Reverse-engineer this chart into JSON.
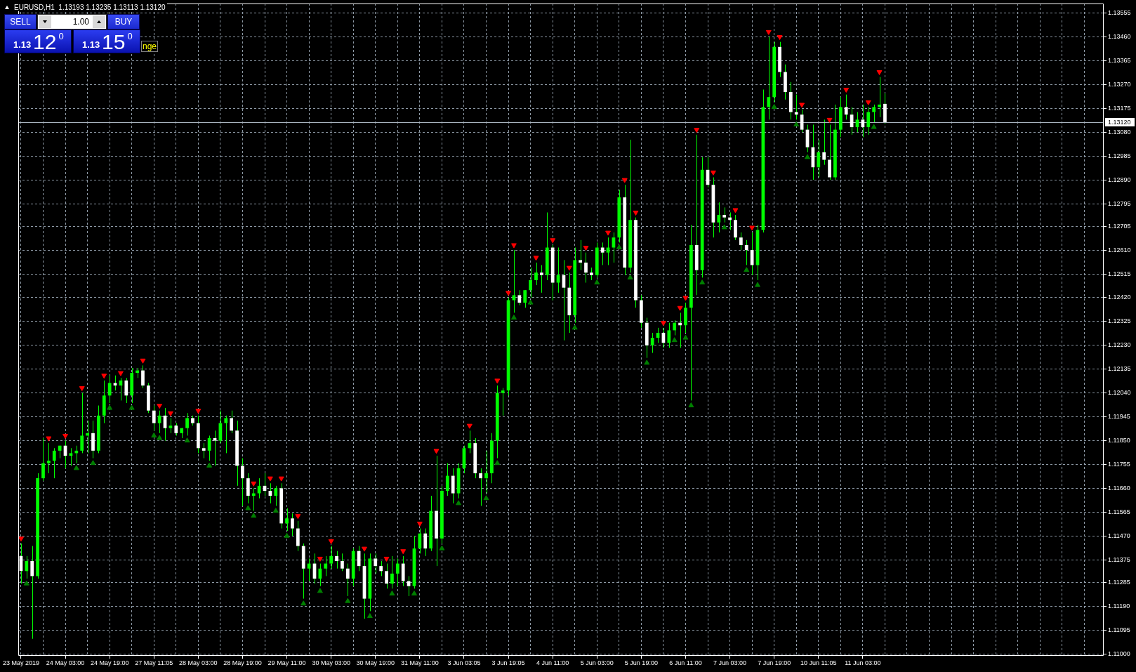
{
  "chart_data": {
    "type": "candlestick",
    "title": "EURUSD,H1  1.13193 1.13235 1.13113 1.13120",
    "categories": [
      "23 May 2019",
      null,
      null,
      null,
      null,
      null,
      null,
      null,
      "24 May 03:00",
      null,
      null,
      null,
      null,
      null,
      null,
      null,
      "24 May 19:00",
      null,
      null,
      null,
      null,
      null,
      null,
      null,
      "27 May 11:05",
      null,
      null,
      null,
      null,
      null,
      null,
      null,
      "28 May 03:00",
      null,
      null,
      null,
      null,
      null,
      null,
      null,
      "28 May 19:00",
      null,
      null,
      null,
      null,
      null,
      null,
      null,
      "29 May 11:00",
      null,
      null,
      null,
      null,
      null,
      null,
      null,
      "30 May 03:00",
      null,
      null,
      null,
      null,
      null,
      null,
      null,
      "30 May 19:00",
      null,
      null,
      null,
      null,
      null,
      null,
      null,
      "31 May 11:00",
      null,
      null,
      null,
      null,
      null,
      null,
      null,
      "3 Jun 03:05",
      null,
      null,
      null,
      null,
      null,
      null,
      null,
      "3 Jun 19:05",
      null,
      null,
      null,
      null,
      null,
      null,
      null,
      "4 Jun 11:00",
      null,
      null,
      null,
      null,
      null,
      null,
      null,
      "5 Jun 03:00",
      null,
      null,
      null,
      null,
      null,
      null,
      null,
      "5 Jun 19:00",
      null,
      null,
      null,
      null,
      null,
      null,
      null,
      "6 Jun 11:00",
      null,
      null,
      null,
      null,
      null,
      null,
      null,
      "7 Jun 03:00",
      null,
      null,
      null,
      null,
      null,
      null,
      null,
      "7 Jun 19:00",
      null,
      null,
      null,
      null,
      null,
      null,
      null,
      "10 Jun 11:05",
      null,
      null,
      null,
      null,
      null,
      null,
      null,
      "11 Jun 03:00",
      null,
      null,
      null,
      null,
      null,
      null,
      null,
      null,
      null,
      null,
      null,
      null,
      null,
      null,
      null,
      null,
      null,
      null,
      null,
      null,
      null,
      null,
      null,
      null,
      null,
      null,
      null,
      null,
      null,
      null,
      null,
      null,
      null,
      null,
      null,
      null,
      null,
      null,
      null,
      null,
      null,
      null,
      null
    ],
    "series": [
      {
        "color": "#00ff00",
        "colors": [
          "#ffffff",
          "#00ff00",
          "#ffffff",
          "#00ff00",
          "#00ff00",
          "#00ff00",
          "#00ff00",
          "#00ff00",
          "#ffffff",
          "#00ff00",
          "#00ff00",
          "#00ff00",
          "#00ff00",
          "#ffffff",
          "#00ff00",
          "#00ff00",
          "#00ff00",
          "#ffffff",
          "#00ff00",
          "#ffffff",
          "#00ff00",
          "#00ff00",
          "#ffffff",
          "#ffffff",
          "#ffffff",
          "#00ff00",
          "#ffffff",
          "#00ff00",
          "#ffffff",
          "#00ff00",
          "#00ff00",
          "#ffffff",
          "#ffffff",
          "#ffffff",
          "#00ff00",
          "#ffffff",
          "#00ff00",
          "#00ff00",
          "#ffffff",
          "#ffffff",
          "#ffffff",
          "#ffffff",
          "#00ff00",
          "#00ff00",
          "#ffffff",
          "#ffffff",
          "#00ff00",
          "#ffffff",
          "#00ff00",
          "#ffffff",
          "#ffffff",
          "#ffffff",
          "#00ff00",
          "#ffffff",
          "#00ff00",
          "#00ff00",
          "#00ff00",
          "#ffffff",
          "#ffffff",
          "#ffffff",
          "#00ff00",
          "#ffffff",
          "#ffffff",
          "#00ff00",
          "#ffffff",
          "#ffffff",
          "#ffffff",
          "#00ff00",
          "#00ff00",
          "#ffffff",
          "#ffffff",
          "#00ff00",
          "#00ff00",
          "#ffffff",
          "#00ff00",
          "#ffffff",
          "#00ff00",
          "#00ff00",
          "#ffffff",
          "#00ff00",
          "#00ff00",
          "#00ff00",
          "#ffffff",
          "#ffffff",
          "#00ff00",
          "#00ff00",
          "#00ff00",
          "#00ff00",
          "#00ff00",
          "#00ff00",
          "#ffffff",
          "#00ff00",
          "#00ff00",
          "#00ff00",
          "#ffffff",
          "#00ff00",
          "#ffffff",
          "#00ff00",
          "#ffffff",
          "#ffffff",
          "#00ff00",
          "#ffffff",
          "#ffffff",
          "#ffffff",
          "#00ff00",
          "#ffffff",
          "#00ff00",
          "#00ff00",
          "#00ff00",
          "#ffffff",
          "#00ff00",
          "#ffffff",
          "#ffffff",
          "#ffffff",
          "#00ff00",
          "#00ff00",
          "#ffffff",
          "#00ff00",
          "#00ff00",
          "#ffffff",
          "#00ff00",
          "#00ff00",
          "#ffffff",
          "#00ff00",
          "#ffffff",
          "#ffffff",
          "#00ff00",
          "#ffffff",
          "#ffffff",
          "#ffffff",
          "#ffffff",
          "#ffffff",
          "#ffffff",
          "#00ff00",
          "#00ff00",
          "#00ff00",
          "#00ff00",
          "#ffffff",
          "#ffffff",
          "#ffffff",
          "#ffffff",
          "#ffffff",
          "#ffffff",
          "#ffffff",
          "#00ff00",
          "#ffffff",
          "#ffffff",
          "#00ff00",
          "#00ff00",
          "#ffffff",
          "#ffffff",
          "#00ff00",
          "#ffffff",
          "#00ff00",
          "#00ff00",
          "#00ff00",
          "#ffffff",
          null,
          null,
          null,
          null,
          null,
          null,
          null,
          null,
          null,
          null,
          null,
          null,
          null,
          null,
          null,
          null,
          null,
          null,
          null,
          null,
          null,
          null,
          null,
          null,
          null,
          null,
          null,
          null,
          null,
          null,
          null,
          null,
          null,
          null,
          null,
          null,
          null,
          null,
          null
        ],
        "ohlc": [
          [
            1.1139,
            1.1144,
            1.1128,
            1.1133
          ],
          [
            1.1133,
            1.1139,
            1.113,
            1.1137
          ],
          [
            1.1137,
            1.1143,
            1.1106,
            1.1131
          ],
          [
            1.1131,
            1.1172,
            1.113,
            1.117
          ],
          [
            1.117,
            1.1186,
            1.1169,
            1.1176
          ],
          [
            1.1176,
            1.1184,
            1.1172,
            1.1177
          ],
          [
            1.1177,
            1.1182,
            1.117,
            1.1181
          ],
          [
            1.1181,
            1.1183,
            1.1178,
            1.1183
          ],
          [
            1.1183,
            1.1185,
            1.1174,
            1.1179
          ],
          [
            1.1179,
            1.1182,
            1.1175,
            1.118
          ],
          [
            1.118,
            1.1183,
            1.1176,
            1.1181
          ],
          [
            1.1181,
            1.1204,
            1.118,
            1.1187
          ],
          [
            1.1187,
            1.1193,
            1.118,
            1.1188
          ],
          [
            1.1188,
            1.1193,
            1.1178,
            1.1181
          ],
          [
            1.1181,
            1.1199,
            1.118,
            1.1195
          ],
          [
            1.1195,
            1.1209,
            1.1192,
            1.1203
          ],
          [
            1.1203,
            1.1211,
            1.12,
            1.1208
          ],
          [
            1.1208,
            1.1211,
            1.1205,
            1.1207
          ],
          [
            1.1207,
            1.121,
            1.1201,
            1.1209
          ],
          [
            1.1209,
            1.121,
            1.12,
            1.1203
          ],
          [
            1.1203,
            1.1214,
            1.12,
            1.1212
          ],
          [
            1.1212,
            1.1214,
            1.121,
            1.1213
          ],
          [
            1.1213,
            1.1215,
            1.1206,
            1.1207
          ],
          [
            1.1207,
            1.1208,
            1.1196,
            1.1197
          ],
          [
            1.1197,
            1.1199,
            1.1189,
            1.1192
          ],
          [
            1.1192,
            1.1197,
            1.1188,
            1.1195
          ],
          [
            1.1195,
            1.1198,
            1.1185,
            1.119
          ],
          [
            1.119,
            1.1194,
            1.1188,
            1.1191
          ],
          [
            1.1191,
            1.1192,
            1.1187,
            1.1188
          ],
          [
            1.1188,
            1.119,
            1.1186,
            1.119
          ],
          [
            1.119,
            1.1196,
            1.1187,
            1.1194
          ],
          [
            1.1194,
            1.1195,
            1.1191,
            1.1192
          ],
          [
            1.1192,
            1.1195,
            1.118,
            1.1182
          ],
          [
            1.1182,
            1.1184,
            1.1178,
            1.1181
          ],
          [
            1.1181,
            1.1187,
            1.1177,
            1.1186
          ],
          [
            1.1186,
            1.1189,
            1.1175,
            1.1185
          ],
          [
            1.1185,
            1.1197,
            1.1184,
            1.1192
          ],
          [
            1.1192,
            1.1195,
            1.118,
            1.1194
          ],
          [
            1.1194,
            1.1197,
            1.1188,
            1.1189
          ],
          [
            1.1189,
            1.1193,
            1.1167,
            1.1175
          ],
          [
            1.1175,
            1.1178,
            1.1159,
            1.117
          ],
          [
            1.117,
            1.1172,
            1.116,
            1.1163
          ],
          [
            1.1163,
            1.1166,
            1.1157,
            1.1164
          ],
          [
            1.1164,
            1.117,
            1.1162,
            1.1167
          ],
          [
            1.1167,
            1.1172,
            1.1163,
            1.1165
          ],
          [
            1.1165,
            1.1168,
            1.116,
            1.1163
          ],
          [
            1.1163,
            1.1167,
            1.1159,
            1.1166
          ],
          [
            1.1166,
            1.1168,
            1.115,
            1.1152
          ],
          [
            1.1152,
            1.1158,
            1.1149,
            1.1154
          ],
          [
            1.1154,
            1.1156,
            1.1147,
            1.115
          ],
          [
            1.115,
            1.1153,
            1.1141,
            1.1143
          ],
          [
            1.1143,
            1.1144,
            1.1122,
            1.1134
          ],
          [
            1.1134,
            1.1138,
            1.1129,
            1.1136
          ],
          [
            1.1136,
            1.114,
            1.1128,
            1.113
          ],
          [
            1.113,
            1.1136,
            1.1127,
            1.1134
          ],
          [
            1.1134,
            1.1139,
            1.1131,
            1.1136
          ],
          [
            1.1136,
            1.1143,
            1.1134,
            1.1139
          ],
          [
            1.1139,
            1.1141,
            1.1134,
            1.1137
          ],
          [
            1.1137,
            1.114,
            1.1133,
            1.1134
          ],
          [
            1.1134,
            1.1136,
            1.1123,
            1.113
          ],
          [
            1.113,
            1.1142,
            1.1127,
            1.1141
          ],
          [
            1.1141,
            1.1143,
            1.1133,
            1.1135
          ],
          [
            1.1135,
            1.114,
            1.1114,
            1.1122
          ],
          [
            1.1122,
            1.114,
            1.1117,
            1.1138
          ],
          [
            1.1138,
            1.114,
            1.1132,
            1.1135
          ],
          [
            1.1135,
            1.1137,
            1.1131,
            1.1133
          ],
          [
            1.1133,
            1.1136,
            1.1126,
            1.1128
          ],
          [
            1.1128,
            1.1139,
            1.1126,
            1.1132
          ],
          [
            1.1132,
            1.1138,
            1.1127,
            1.1136
          ],
          [
            1.1136,
            1.1139,
            1.1127,
            1.1129
          ],
          [
            1.1129,
            1.1131,
            1.1123,
            1.1127
          ],
          [
            1.1127,
            1.1147,
            1.1126,
            1.1142
          ],
          [
            1.1142,
            1.115,
            1.114,
            1.1148
          ],
          [
            1.1148,
            1.115,
            1.1139,
            1.1142
          ],
          [
            1.1142,
            1.1163,
            1.1141,
            1.1157
          ],
          [
            1.1157,
            1.1179,
            1.1135,
            1.1146
          ],
          [
            1.1146,
            1.1167,
            1.1144,
            1.1165
          ],
          [
            1.1165,
            1.1176,
            1.1163,
            1.1171
          ],
          [
            1.1171,
            1.1174,
            1.116,
            1.1164
          ],
          [
            1.1164,
            1.1176,
            1.1162,
            1.1174
          ],
          [
            1.1174,
            1.1183,
            1.1172,
            1.1182
          ],
          [
            1.1182,
            1.1189,
            1.118,
            1.1184
          ],
          [
            1.1184,
            1.1186,
            1.117,
            1.1172
          ],
          [
            1.1172,
            1.1174,
            1.1159,
            1.117
          ],
          [
            1.117,
            1.1181,
            1.1164,
            1.1172
          ],
          [
            1.1172,
            1.1188,
            1.1168,
            1.1185
          ],
          [
            1.1185,
            1.1207,
            1.1178,
            1.1204
          ],
          [
            1.1204,
            1.1206,
            1.1195,
            1.1205
          ],
          [
            1.1205,
            1.1242,
            1.1203,
            1.1241
          ],
          [
            1.1241,
            1.1261,
            1.1236,
            1.1243
          ],
          [
            1.1243,
            1.1245,
            1.1239,
            1.124
          ],
          [
            1.124,
            1.1245,
            1.1238,
            1.1245
          ],
          [
            1.1245,
            1.1254,
            1.1242,
            1.1249
          ],
          [
            1.1249,
            1.1256,
            1.1247,
            1.1252
          ],
          [
            1.1252,
            1.1255,
            1.1244,
            1.1251
          ],
          [
            1.1251,
            1.1276,
            1.1249,
            1.1262
          ],
          [
            1.1262,
            1.1263,
            1.1241,
            1.1248
          ],
          [
            1.1248,
            1.1262,
            1.1244,
            1.1251
          ],
          [
            1.1251,
            1.1257,
            1.1225,
            1.1246
          ],
          [
            1.1246,
            1.1252,
            1.1228,
            1.1235
          ],
          [
            1.1235,
            1.1262,
            1.1232,
            1.1257
          ],
          [
            1.1257,
            1.1265,
            1.1253,
            1.1256
          ],
          [
            1.1256,
            1.126,
            1.1248,
            1.1252
          ],
          [
            1.1252,
            1.1254,
            1.1249,
            1.1251
          ],
          [
            1.1251,
            1.1264,
            1.125,
            1.1262
          ],
          [
            1.1262,
            1.1264,
            1.1255,
            1.126
          ],
          [
            1.126,
            1.1266,
            1.1255,
            1.1262
          ],
          [
            1.1262,
            1.1268,
            1.1256,
            1.1266
          ],
          [
            1.1266,
            1.1285,
            1.1264,
            1.1282
          ],
          [
            1.1282,
            1.1287,
            1.1251,
            1.1254
          ],
          [
            1.1254,
            1.1305,
            1.1252,
            1.1273
          ],
          [
            1.1273,
            1.1274,
            1.1238,
            1.1241
          ],
          [
            1.1241,
            1.1243,
            1.123,
            1.1232
          ],
          [
            1.1232,
            1.1234,
            1.1218,
            1.1223
          ],
          [
            1.1223,
            1.1228,
            1.122,
            1.1226
          ],
          [
            1.1226,
            1.123,
            1.1224,
            1.1228
          ],
          [
            1.1228,
            1.123,
            1.1222,
            1.1224
          ],
          [
            1.1224,
            1.1232,
            1.1222,
            1.1229
          ],
          [
            1.1229,
            1.1233,
            1.1227,
            1.1232
          ],
          [
            1.1232,
            1.1236,
            1.1222,
            1.1231
          ],
          [
            1.1231,
            1.124,
            1.1228,
            1.1238
          ],
          [
            1.1238,
            1.1271,
            1.1201,
            1.1263
          ],
          [
            1.1263,
            1.1307,
            1.1243,
            1.1253
          ],
          [
            1.1253,
            1.1298,
            1.125,
            1.1293
          ],
          [
            1.1293,
            1.1298,
            1.1286,
            1.1287
          ],
          [
            1.1287,
            1.129,
            1.1266,
            1.1272
          ],
          [
            1.1272,
            1.128,
            1.1268,
            1.1275
          ],
          [
            1.1275,
            1.1278,
            1.1272,
            1.1274
          ],
          [
            1.1274,
            1.1276,
            1.1269,
            1.1273
          ],
          [
            1.1273,
            1.1275,
            1.1265,
            1.1266
          ],
          [
            1.1266,
            1.1268,
            1.1261,
            1.1263
          ],
          [
            1.1263,
            1.1265,
            1.1255,
            1.1261
          ],
          [
            1.1261,
            1.1268,
            1.1251,
            1.1255
          ],
          [
            1.1255,
            1.1271,
            1.1249,
            1.1269
          ],
          [
            1.1269,
            1.1325,
            1.1268,
            1.1318
          ],
          [
            1.1318,
            1.1346,
            1.1313,
            1.1322
          ],
          [
            1.1322,
            1.1344,
            1.132,
            1.1342
          ],
          [
            1.1342,
            1.1344,
            1.133,
            1.1332
          ],
          [
            1.1332,
            1.1335,
            1.1321,
            1.1324
          ],
          [
            1.1324,
            1.1328,
            1.1313,
            1.1316
          ],
          [
            1.1316,
            1.1323,
            1.1313,
            1.1315
          ],
          [
            1.1315,
            1.1317,
            1.1308,
            1.1309
          ],
          [
            1.1309,
            1.1311,
            1.13,
            1.1302
          ],
          [
            1.1302,
            1.1311,
            1.1289,
            1.1294
          ],
          [
            1.1294,
            1.1305,
            1.129,
            1.13
          ],
          [
            1.13,
            1.1313,
            1.1295,
            1.1297
          ],
          [
            1.1297,
            1.1311,
            1.1289,
            1.129
          ],
          [
            1.129,
            1.1319,
            1.1289,
            1.1309
          ],
          [
            1.1309,
            1.1322,
            1.1306,
            1.1318
          ],
          [
            1.1318,
            1.1323,
            1.1313,
            1.1315
          ],
          [
            1.1315,
            1.1318,
            1.1307,
            1.131
          ],
          [
            1.131,
            1.1316,
            1.1308,
            1.1313
          ],
          [
            1.1313,
            1.1319,
            1.1306,
            1.131
          ],
          [
            1.131,
            1.1318,
            1.1307,
            1.1316
          ],
          [
            1.1316,
            1.1319,
            1.1312,
            1.1318
          ],
          [
            1.1318,
            1.133,
            1.1314,
            1.1319
          ],
          [
            1.13193,
            1.13235,
            1.13113,
            1.1312
          ],
          null,
          null,
          null,
          null,
          null,
          null,
          null,
          null,
          null,
          null,
          null,
          null,
          null,
          null,
          null,
          null,
          null,
          null,
          null,
          null,
          null,
          null,
          null,
          null,
          null,
          null,
          null,
          null,
          null,
          null,
          null,
          null,
          null,
          null,
          null,
          null,
          null,
          null,
          null
        ]
      },
      {
        "type": "scatter",
        "color": "#ff0000",
        "values": [
          1.1146,
          null,
          null,
          null,
          null,
          1.1186,
          null,
          null,
          1.1187,
          null,
          null,
          1.1206,
          null,
          null,
          null,
          1.1211,
          null,
          null,
          1.1212,
          null,
          null,
          null,
          1.1217,
          null,
          null,
          1.1199,
          null,
          1.1196,
          null,
          null,
          null,
          null,
          1.1197,
          null,
          null,
          null,
          null,
          null,
          null,
          null,
          null,
          null,
          1.1168,
          null,
          null,
          1.117,
          null,
          1.117,
          null,
          null,
          1.1155,
          null,
          null,
          null,
          1.1138,
          null,
          1.1145,
          null,
          null,
          null,
          null,
          null,
          1.1142,
          null,
          null,
          null,
          1.1138,
          null,
          null,
          1.1141,
          null,
          null,
          1.1152,
          null,
          null,
          1.1181,
          null,
          null,
          null,
          null,
          null,
          1.1191,
          null,
          null,
          null,
          null,
          1.1209,
          null,
          1.1244,
          1.1263,
          null,
          null,
          null,
          1.1258,
          null,
          null,
          1.1265,
          null,
          null,
          1.1254,
          null,
          null,
          1.1262,
          null,
          null,
          null,
          1.1268,
          null,
          null,
          1.1289,
          null,
          1.1276,
          null,
          null,
          null,
          null,
          1.1232,
          null,
          null,
          1.1238,
          1.1242,
          null,
          1.1309,
          null,
          null,
          1.1292,
          null,
          null,
          null,
          1.1277,
          null,
          null,
          1.127,
          null,
          null,
          1.1348,
          null,
          1.1346,
          null,
          null,
          null,
          1.1319,
          null,
          null,
          null,
          null,
          1.1313,
          null,
          null,
          1.1325,
          null,
          null,
          null,
          1.132,
          null,
          1.1332,
          null,
          null,
          null,
          null,
          null,
          null,
          null,
          null,
          null,
          null,
          null,
          null,
          null,
          null,
          null,
          null,
          null,
          null,
          null,
          null,
          null,
          null,
          null,
          null,
          null,
          null,
          null,
          null,
          null,
          null,
          null,
          null,
          null,
          null,
          null,
          null,
          null,
          null,
          null,
          null
        ]
      },
      {
        "type": "scatter",
        "color": "#008000",
        "values": [
          null,
          1.1128,
          null,
          null,
          null,
          null,
          null,
          null,
          null,
          null,
          1.1174,
          null,
          null,
          1.1176,
          null,
          null,
          1.1198,
          null,
          null,
          null,
          1.1198,
          null,
          null,
          null,
          1.1187,
          1.1186,
          null,
          null,
          null,
          null,
          1.1185,
          null,
          null,
          null,
          1.1175,
          null,
          null,
          null,
          null,
          null,
          null,
          1.1158,
          1.1155,
          null,
          null,
          null,
          1.1157,
          null,
          1.1147,
          null,
          null,
          1.112,
          null,
          null,
          1.1125,
          null,
          null,
          null,
          null,
          1.1121,
          null,
          null,
          null,
          1.1115,
          null,
          null,
          null,
          1.1124,
          null,
          null,
          null,
          1.1124,
          null,
          null,
          null,
          null,
          1.1142,
          null,
          null,
          1.116,
          null,
          null,
          null,
          null,
          1.1162,
          null,
          1.1176,
          null,
          null,
          1.1234,
          null,
          null,
          1.124,
          null,
          null,
          null,
          null,
          null,
          null,
          null,
          1.123,
          null,
          null,
          null,
          1.1248,
          null,
          null,
          null,
          1.1262,
          null,
          1.125,
          null,
          null,
          1.1216,
          null,
          null,
          null,
          null,
          1.1225,
          null,
          1.1226,
          1.1199,
          null,
          1.1248,
          null,
          null,
          null,
          1.127,
          null,
          null,
          null,
          1.1253,
          null,
          1.1247,
          null,
          null,
          1.1318,
          null,
          null,
          null,
          1.1311,
          null,
          1.1298,
          null,
          null,
          null,
          null,
          null,
          null,
          null,
          null,
          null,
          null,
          null,
          1.131,
          null,
          null,
          null,
          null,
          null,
          null,
          null,
          null,
          null,
          null,
          null,
          null,
          null,
          null,
          null,
          null,
          null,
          null,
          null,
          null,
          null,
          null,
          null,
          null,
          null,
          null,
          null,
          null,
          null,
          null,
          null,
          null,
          null,
          null,
          null,
          null,
          null,
          null,
          null,
          null,
          null
        ]
      }
    ],
    "marker": "triangle",
    "ylim": [
      1.10992,
      1.13593
    ],
    "yticks": [
      1.13555,
      {
        "value": 1.1346,
        "label": "1.13460"
      },
      1.13365,
      {
        "value": 1.1327,
        "label": "1.13270"
      },
      1.13175,
      {
        "value": 1.1308,
        "label": "1.13080"
      },
      1.12985,
      {
        "value": 1.1289,
        "label": "1.12890"
      },
      1.12795,
      1.12705,
      {
        "value": 1.1261,
        "label": "1.12610"
      },
      1.12515,
      {
        "value": 1.1242,
        "label": "1.12420"
      },
      1.12325,
      {
        "value": 1.1223,
        "label": "1.12230"
      },
      1.12135,
      {
        "value": 1.1204,
        "label": "1.12040"
      },
      1.11945,
      {
        "value": 1.1185,
        "label": "1.11850"
      },
      1.11755,
      {
        "value": 1.1166,
        "label": "1.11660"
      },
      1.11565,
      {
        "value": 1.1147,
        "label": "1.11470"
      },
      1.11375,
      1.11285,
      {
        "value": 1.1119,
        "label": "1.11190"
      },
      1.11095,
      {
        "value": 1.11,
        "label": "1.11000"
      }
    ],
    "ref_lines": [
      {
        "axis": "y",
        "value": 1.1312,
        "label": "1.13120",
        "color": "#a9b4bf"
      }
    ],
    "grid": true,
    "legend": false,
    "annotations": [
      "SELL",
      "1.00",
      "BUY",
      "1.13",
      "12$^{0}$",
      "1.13",
      "15$^{0}$",
      "nge"
    ]
  }
}
